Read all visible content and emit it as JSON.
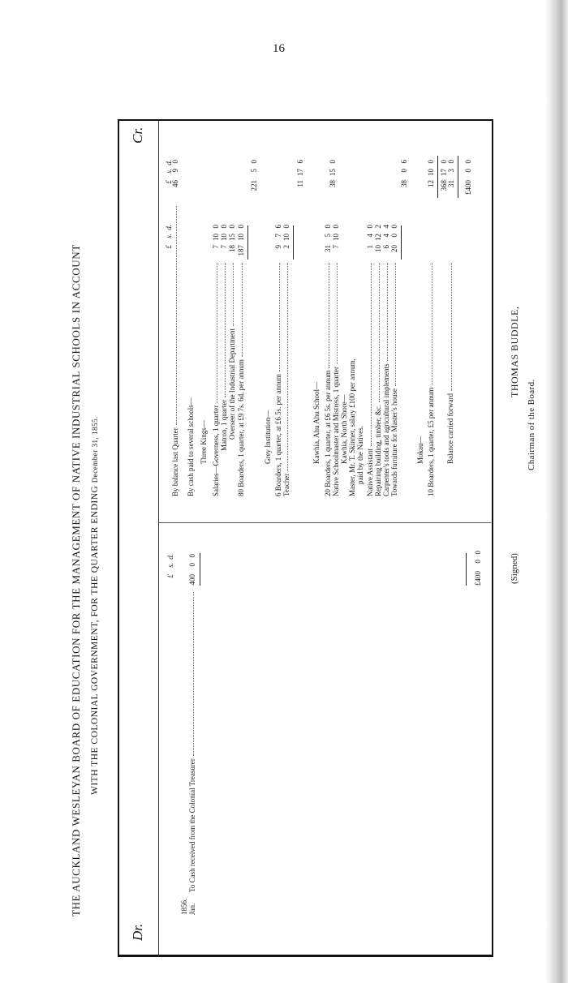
{
  "page_number": "16",
  "title": {
    "line1": "THE AUCKLAND WESLEYAN BOARD OF EDUCATION FOR THE MANAGEMENT OF NATIVE INDUSTRIAL SCHOOLS IN ACCOUNT",
    "line2_prefix": "WITH THE COLONIAL GOVERNMENT, FOR THE QUARTER ENDING",
    "line2_date": "December 31, 1855."
  },
  "debit": {
    "label": "Dr.",
    "currency_headers": [
      "£",
      "s.",
      "d."
    ],
    "year": "1856.",
    "month": "Jan.",
    "entry": "To Cash received from the Colonial Treasurer",
    "entry_amount": [
      "400",
      "0",
      "0"
    ],
    "total": [
      "£400",
      "0",
      "0"
    ]
  },
  "credit": {
    "label": "Cr.",
    "currency_headers": [
      "£",
      "s.",
      "d."
    ],
    "rows": {
      "balance_last": "By balance last Quarter",
      "balance_last_amt": [
        "46",
        "9",
        "0"
      ],
      "cash_paid": "By cash paid to several schools—",
      "three_kings": "Three Kings—",
      "governess": "Salaries—Governess, 1 quarter",
      "governess_amt": [
        "7",
        "10",
        "0"
      ],
      "matron": "Matron, 1 quarter",
      "matron_amt": [
        "7",
        "10",
        "0"
      ],
      "overseer": "Overseer of the Industrial Department",
      "overseer_amt": [
        "18",
        "15",
        "0"
      ],
      "boarders80": "80 Boarders, 1 quarter, at £9 7s. 6d. per annum",
      "boarders80_amt": [
        "187",
        "10",
        "0"
      ],
      "three_kings_total": [
        "221",
        "5",
        "0"
      ],
      "grey": "Grey Institution—",
      "boarders6": "6 Boarders, 1 quarter, at £6 5s. per annum",
      "boarders6_amt": [
        "9",
        "7",
        "6"
      ],
      "teacher": "Teacher",
      "teacher_amt": [
        "2",
        "10",
        "0"
      ],
      "grey_total": [
        "11",
        "17",
        "6"
      ],
      "ahu": "Kawhia, Ahu Ahu School—",
      "boarders20": "20 Boarders, 1 quarter, at £6 5s. per annum",
      "boarders20_amt": [
        "31",
        "5",
        "0"
      ],
      "schoolmaster": "Native Schoolmaster and Mistress, 1 quarter",
      "schoolmaster_amt": [
        "7",
        "10",
        "0"
      ],
      "ahu_total": [
        "38",
        "15",
        "0"
      ],
      "north": "Kawhia, North Shore—",
      "master": "Master, Mr. T. Skinner, salary £100 per annum,",
      "master2": "paid by the Natives.",
      "assistant": "Native Assistant",
      "assistant_amt": [
        "1",
        "4",
        "0"
      ],
      "repairing": "Repairing building, timber, &c.",
      "repairing_amt": [
        "10",
        "12",
        "2"
      ],
      "tools": "Carpenter's tools and agricultural implements",
      "tools_amt": [
        "6",
        "4",
        "4"
      ],
      "furniture": "Towards furniture for Master's house",
      "furniture_amt": [
        "20",
        "0",
        "0"
      ],
      "north_total": [
        "38",
        "0",
        "6"
      ],
      "mokau": "Mokau—",
      "boarders10": "10 Boarders, 1 quarter, £5 per annum",
      "mokau_total": [
        "12",
        "10",
        "0"
      ],
      "subtotal": [
        "368",
        "17",
        "0"
      ],
      "balance_fwd": "Balance carried forward",
      "balance_fwd_amt": [
        "31",
        "3",
        "0"
      ],
      "total": [
        "£400",
        "0",
        "0"
      ]
    }
  },
  "signature": {
    "signed": "(Signed)",
    "name": "THOMAS BUDDLE,",
    "role": "Chairman of the Board."
  }
}
